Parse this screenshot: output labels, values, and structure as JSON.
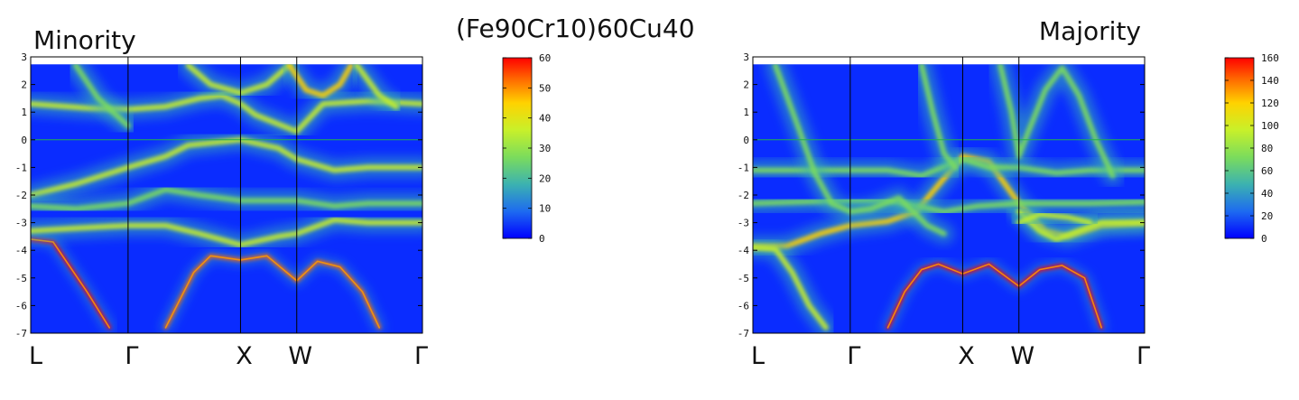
{
  "title": "(Fe90Cr10)60Cu40",
  "colors": {
    "background": "#0a2cff",
    "fermi_line": "#22b14c",
    "axis": "#000000",
    "colormap": [
      "#0000ff",
      "#1e6bf0",
      "#3cb2b0",
      "#7bdc5c",
      "#c8f02a",
      "#ffd200",
      "#ff6a00",
      "#ff0000"
    ]
  },
  "chart_data": [
    {
      "type": "heatmap",
      "panel_label": "Minority",
      "ylim": [
        -7,
        3
      ],
      "y_ticks": [
        3,
        2,
        1,
        0,
        -1,
        -2,
        -3,
        -4,
        -5,
        -6,
        -7
      ],
      "k_points": [
        "L",
        "Γ",
        "X",
        "W",
        "Γ"
      ],
      "k_positions": [
        0,
        0.866,
        1.866,
        2.366,
        3.484
      ],
      "fermi_level": 0,
      "colorbar": {
        "min": 0,
        "max": 60,
        "ticks": [
          60,
          50,
          40,
          30,
          20,
          10,
          0
        ]
      },
      "bands": [
        {
          "points": [
            [
              0,
              -3.6
            ],
            [
              0.2,
              -3.7
            ],
            [
              0.5,
              -5.5
            ],
            [
              0.7,
              -6.8
            ]
          ],
          "weight": 0.95
        },
        {
          "points": [
            [
              1.2,
              -6.8
            ],
            [
              1.45,
              -4.8
            ],
            [
              1.6,
              -4.2
            ],
            [
              1.866,
              -4.35
            ],
            [
              2.1,
              -4.2
            ],
            [
              2.366,
              -5.1
            ],
            [
              2.55,
              -4.4
            ],
            [
              2.75,
              -4.6
            ],
            [
              2.95,
              -5.5
            ],
            [
              3.1,
              -6.8
            ]
          ],
          "weight": 0.8
        },
        {
          "points": [
            [
              0,
              1.3
            ],
            [
              0.5,
              1.15
            ],
            [
              0.866,
              1.1
            ],
            [
              1.2,
              1.2
            ],
            [
              1.5,
              1.5
            ],
            [
              1.7,
              1.6
            ],
            [
              1.866,
              1.3
            ],
            [
              2.0,
              0.9
            ],
            [
              2.366,
              0.3
            ],
            [
              2.6,
              1.3
            ],
            [
              3.0,
              1.4
            ],
            [
              3.484,
              1.3
            ]
          ],
          "weight": 0.55
        },
        {
          "points": [
            [
              0,
              -3.3
            ],
            [
              0.4,
              -3.2
            ],
            [
              0.866,
              -3.1
            ],
            [
              1.2,
              -3.1
            ],
            [
              1.5,
              -3.4
            ],
            [
              1.866,
              -3.8
            ],
            [
              2.2,
              -3.5
            ],
            [
              2.366,
              -3.4
            ],
            [
              2.7,
              -2.9
            ],
            [
              3.0,
              -3.0
            ],
            [
              3.484,
              -3.0
            ]
          ],
          "weight": 0.55
        },
        {
          "points": [
            [
              0,
              -2.0
            ],
            [
              0.4,
              -1.6
            ],
            [
              0.866,
              -1.0
            ],
            [
              1.2,
              -0.6
            ],
            [
              1.4,
              -0.2
            ],
            [
              1.866,
              0.0
            ],
            [
              2.2,
              -0.3
            ],
            [
              2.366,
              -0.7
            ],
            [
              2.7,
              -1.1
            ],
            [
              3.0,
              -1.0
            ],
            [
              3.484,
              -1.0
            ]
          ],
          "weight": 0.45
        },
        {
          "points": [
            [
              0,
              -2.4
            ],
            [
              0.4,
              -2.5
            ],
            [
              0.866,
              -2.3
            ],
            [
              1.2,
              -1.8
            ],
            [
              1.5,
              -2.0
            ],
            [
              1.866,
              -2.2
            ],
            [
              2.2,
              -2.2
            ],
            [
              2.366,
              -2.2
            ],
            [
              2.7,
              -2.4
            ],
            [
              3.0,
              -2.3
            ],
            [
              3.484,
              -2.3
            ]
          ],
          "weight": 0.4
        },
        {
          "points": [
            [
              1.4,
              2.7
            ],
            [
              1.6,
              2.0
            ],
            [
              1.866,
              1.7
            ],
            [
              2.1,
              2.0
            ],
            [
              2.3,
              2.7
            ]
          ],
          "weight": 0.55
        },
        {
          "points": [
            [
              2.3,
              2.7
            ],
            [
              2.45,
              1.8
            ],
            [
              2.6,
              1.6
            ],
            [
              2.75,
              2.0
            ],
            [
              2.85,
              2.7
            ]
          ],
          "weight": 0.65
        },
        {
          "points": [
            [
              0.4,
              2.7
            ],
            [
              0.6,
              1.5
            ],
            [
              0.866,
              0.5
            ]
          ],
          "weight": 0.35
        },
        {
          "points": [
            [
              2.9,
              2.7
            ],
            [
              3.1,
              1.6
            ],
            [
              3.25,
              1.2
            ]
          ],
          "weight": 0.5
        }
      ]
    },
    {
      "type": "heatmap",
      "panel_label": "Majority",
      "ylim": [
        -7,
        3
      ],
      "y_ticks": [
        3,
        2,
        1,
        0,
        -1,
        -2,
        -3,
        -4,
        -5,
        -6,
        -7
      ],
      "k_points": [
        "L",
        "Γ",
        "X",
        "W",
        "Γ"
      ],
      "k_positions": [
        0,
        0.866,
        1.866,
        2.366,
        3.484
      ],
      "fermi_level": 0,
      "colorbar": {
        "min": 0,
        "max": 160,
        "ticks": [
          160,
          140,
          120,
          100,
          80,
          60,
          40,
          20,
          0
        ]
      },
      "bands": [
        {
          "points": [
            [
              0,
              -3.85
            ],
            [
              0.3,
              -3.85
            ],
            [
              0.6,
              -3.4
            ],
            [
              0.866,
              -3.1
            ],
            [
              1.2,
              -2.95
            ],
            [
              1.45,
              -2.6
            ],
            [
              1.866,
              -0.6
            ],
            [
              2.1,
              -0.8
            ],
            [
              2.366,
              -2.3
            ],
            [
              2.6,
              -3.3
            ],
            [
              2.8,
              -3.5
            ],
            [
              3.1,
              -3.1
            ],
            [
              3.484,
              -3.0
            ]
          ],
          "weight": 0.6
        },
        {
          "points": [
            [
              1.2,
              -6.8
            ],
            [
              1.35,
              -5.5
            ],
            [
              1.5,
              -4.7
            ],
            [
              1.65,
              -4.5
            ],
            [
              1.866,
              -4.85
            ],
            [
              2.1,
              -4.5
            ],
            [
              2.366,
              -5.3
            ],
            [
              2.55,
              -4.7
            ],
            [
              2.75,
              -4.55
            ],
            [
              2.95,
              -5.0
            ],
            [
              3.1,
              -6.8
            ]
          ],
          "weight": 0.9
        },
        {
          "points": [
            [
              0,
              -3.9
            ],
            [
              0.2,
              -3.95
            ],
            [
              0.35,
              -4.8
            ],
            [
              0.5,
              -6.0
            ],
            [
              0.65,
              -6.8
            ]
          ],
          "weight": 0.55
        },
        {
          "points": [
            [
              0,
              -1.1
            ],
            [
              0.4,
              -1.1
            ],
            [
              0.866,
              -1.1
            ],
            [
              1.2,
              -1.1
            ],
            [
              1.5,
              -1.3
            ],
            [
              1.866,
              -0.7
            ],
            [
              2.1,
              -1.0
            ],
            [
              2.366,
              -1.0
            ],
            [
              2.7,
              -1.2
            ],
            [
              3.0,
              -1.1
            ],
            [
              3.484,
              -1.1
            ]
          ],
          "weight": 0.35
        },
        {
          "points": [
            [
              0,
              -2.3
            ],
            [
              0.4,
              -2.25
            ],
            [
              0.866,
              -2.2
            ],
            [
              1.2,
              -2.2
            ],
            [
              1.45,
              -2.4
            ],
            [
              1.7,
              -2.6
            ],
            [
              2.0,
              -2.4
            ],
            [
              2.366,
              -2.3
            ],
            [
              2.6,
              -2.3
            ],
            [
              3.0,
              -2.3
            ],
            [
              3.484,
              -2.25
            ]
          ],
          "weight": 0.35
        },
        {
          "points": [
            [
              0.2,
              2.7
            ],
            [
              0.4,
              0.5
            ],
            [
              0.55,
              -1.2
            ],
            [
              0.7,
              -2.3
            ],
            [
              0.866,
              -2.6
            ],
            [
              1.05,
              -2.5
            ],
            [
              1.3,
              -2.1
            ],
            [
              1.55,
              -3.1
            ],
            [
              1.7,
              -3.4
            ]
          ],
          "weight": 0.35
        },
        {
          "points": [
            [
              1.5,
              2.7
            ],
            [
              1.6,
              1.0
            ],
            [
              1.7,
              -0.5
            ],
            [
              1.8,
              -1.0
            ]
          ],
          "weight": 0.3
        },
        {
          "points": [
            [
              2.2,
              2.7
            ],
            [
              2.3,
              1.0
            ],
            [
              2.366,
              -0.6
            ],
            [
              2.45,
              0.3
            ],
            [
              2.6,
              1.8
            ],
            [
              2.75,
              2.6
            ],
            [
              2.9,
              1.6
            ],
            [
              3.05,
              0.0
            ],
            [
              3.2,
              -1.3
            ]
          ],
          "weight": 0.4
        },
        {
          "points": [
            [
              2.366,
              -2.6
            ],
            [
              2.55,
              -3.3
            ],
            [
              2.7,
              -3.6
            ],
            [
              2.9,
              -3.3
            ],
            [
              3.1,
              -3.0
            ],
            [
              3.484,
              -3.0
            ]
          ],
          "weight": 0.45
        },
        {
          "points": [
            [
              2.366,
              -3.0
            ],
            [
              2.55,
              -2.7
            ],
            [
              2.8,
              -2.8
            ],
            [
              3.0,
              -3.0
            ]
          ],
          "weight": 0.45
        }
      ]
    }
  ]
}
